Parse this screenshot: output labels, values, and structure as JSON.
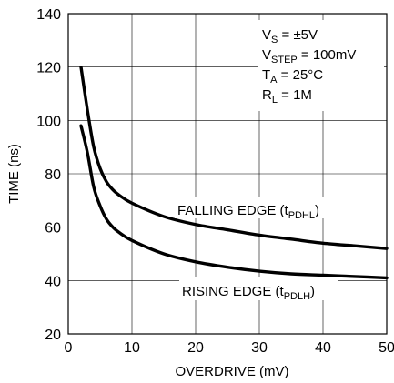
{
  "chart_data": {
    "type": "line",
    "title": "",
    "xlabel": "OVERDRIVE (mV)",
    "ylabel": "TIME (ns)",
    "xlim": [
      0,
      50
    ],
    "ylim": [
      20,
      140
    ],
    "x_ticks": [
      "0",
      "10",
      "20",
      "30",
      "40",
      "50"
    ],
    "y_ticks": [
      "20",
      "40",
      "60",
      "80",
      "100",
      "120",
      "140"
    ],
    "grid": true,
    "series": [
      {
        "name": "FALLING EDGE (tPDHL)",
        "label_main": "FALLING EDGE (t",
        "label_sub": "PDHL",
        "label_end": ")",
        "points": [
          [
            2,
            120
          ],
          [
            3,
            104
          ],
          [
            4,
            90
          ],
          [
            5,
            82
          ],
          [
            6,
            77
          ],
          [
            7,
            74
          ],
          [
            8,
            72
          ],
          [
            10,
            69
          ],
          [
            15,
            64
          ],
          [
            20,
            61
          ],
          [
            25,
            59
          ],
          [
            30,
            57
          ],
          [
            35,
            55.5
          ],
          [
            40,
            54
          ],
          [
            45,
            53
          ],
          [
            50,
            52
          ]
        ]
      },
      {
        "name": "RISING EDGE (tPDLH)",
        "label_main": "RISING EDGE (t",
        "label_sub": "PDLH",
        "label_end": ")",
        "points": [
          [
            2,
            98
          ],
          [
            3,
            88
          ],
          [
            4,
            75
          ],
          [
            5,
            68
          ],
          [
            6,
            63
          ],
          [
            7,
            60
          ],
          [
            8,
            58
          ],
          [
            10,
            55
          ],
          [
            15,
            50
          ],
          [
            20,
            47
          ],
          [
            25,
            45
          ],
          [
            30,
            43.5
          ],
          [
            35,
            42.5
          ],
          [
            40,
            42
          ],
          [
            45,
            41.5
          ],
          [
            50,
            41
          ]
        ]
      }
    ],
    "conditions": [
      {
        "main": "V",
        "sub": "S",
        "rest": " = ±5V"
      },
      {
        "main": "V",
        "sub": "STEP",
        "rest": " = 100mV"
      },
      {
        "main": "T",
        "sub": "A",
        "rest": " = 25°C"
      },
      {
        "main": "R",
        "sub": "L",
        "rest": " = 1M"
      }
    ]
  }
}
